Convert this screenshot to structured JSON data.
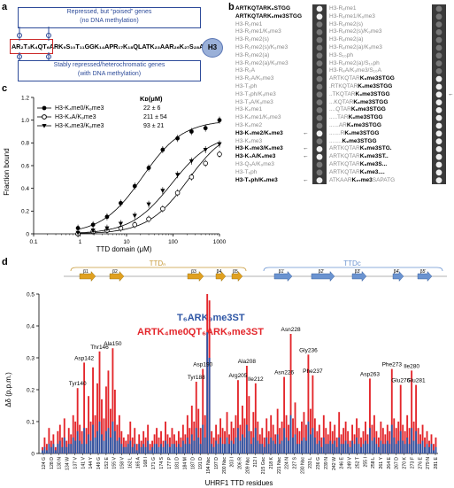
{
  "panels": {
    "a": "a",
    "b": "b",
    "c": "c",
    "d": "d"
  },
  "panel_a": {
    "top_note_1": "Repressed, but “poised” genes",
    "top_note_2": "(no DNA methylation)",
    "bottom_note_1": "Stably repressed/heterochromatic genes",
    "bottom_note_2": "(with DNA methylation)",
    "sequence": "AR₂T₃K₄QT₆ARK₉S₁₀T₁₁GGK₁₄APR₁₇K₁₈QLATK₂₃AAR₂₆K₂₇S₂₈AP",
    "histone": "H3",
    "colors": {
      "top_box": "#2e4c9a",
      "bottom_box": "#2e4c9a",
      "red_box": "#cc2a2a"
    }
  },
  "panel_b": {
    "left_col": [
      {
        "text": "ARTKQTARK₉STGG",
        "bold": true
      },
      {
        "text": "ARTKQTARK₉me3STGG",
        "bold": true
      },
      {
        "text": "H3-R₂me1",
        "bold": false
      },
      {
        "text": "H3-R₂me1/K₉me3",
        "bold": false
      },
      {
        "text": "H3-R₂me2(s)",
        "bold": false
      },
      {
        "text": "H3-R₂me2(s)/K₉me3",
        "bold": false
      },
      {
        "text": "H3-R₂me2(a)",
        "bold": false
      },
      {
        "text": "H3-R₂me2(a)/K₉me3",
        "bold": false
      },
      {
        "text": "H3-R₂A",
        "bold": false
      },
      {
        "text": "H3-R₂A/K₉me3",
        "bold": false
      },
      {
        "text": "H3-T₃ph",
        "bold": false
      },
      {
        "text": "H3-T₃ph/K₉me3",
        "bold": false
      },
      {
        "text": "H3-T₃A/K₉me3",
        "bold": false
      },
      {
        "text": "H3-K₄me1",
        "bold": false
      },
      {
        "text": "H3-K₄me1/K₉me3",
        "bold": false
      },
      {
        "text": "H3-K₄me2",
        "bold": false
      },
      {
        "text": "H3-K₄me2/K₉me3",
        "bold": true
      },
      {
        "text": "H3-K₄me3",
        "bold": false
      },
      {
        "text": "H3-K₄me3/K₉me3",
        "bold": true
      },
      {
        "text": "H3-K₄A/K₉me3",
        "bold": true
      },
      {
        "text": "H3-Q₅A/K₉me3",
        "bold": false
      },
      {
        "text": "H3-T₆ph",
        "bold": false
      },
      {
        "text": "H3-T₆ph/K₉me3",
        "bold": true
      }
    ],
    "left_arrows": [
      16,
      18,
      19,
      22
    ],
    "right_col": [
      {
        "a": "H3-R₈me1",
        "b": ""
      },
      {
        "a": "H3-R₈me1/K₉me3",
        "b": ""
      },
      {
        "a": "H3-R₈me2(s)",
        "b": ""
      },
      {
        "a": "H3-R₈me2(s)/K₉me3",
        "b": ""
      },
      {
        "a": "H3-R₈me2(a)",
        "b": ""
      },
      {
        "a": "H3-R₈me2(a)/K₉me3",
        "b": ""
      },
      {
        "a": "H3-S₁₀ph",
        "b": ""
      },
      {
        "a": "H3-R₈me2(a)/S₁₀ph",
        "b": ""
      },
      {
        "a": "H3-R₈A/K₉me3/S₁₀A",
        "b": ""
      },
      {
        "a": "ARTKQTAR",
        "b": "K₉me3STGG"
      },
      {
        "a": ".RTKQTAR",
        "b": "K₉me3STGG"
      },
      {
        "a": "..TKQTAR",
        "b": "K₉me3STGG"
      },
      {
        "a": "...KQTAR",
        "b": "K₉me3STGG"
      },
      {
        "a": "....QTAR",
        "b": "K₉me3STGG"
      },
      {
        "a": ".....TAR",
        "b": "K₉me3STGG"
      },
      {
        "a": "......AR",
        "b": "K₉me3STGG"
      },
      {
        "a": ".......R",
        "b": "K₉me3STGG"
      },
      {
        "a": "........",
        "b": "K₉me3STGG"
      },
      {
        "a": "ARTKQTAR",
        "b": "K₉me3STG."
      },
      {
        "a": "ARTKQTAR",
        "b": "K₉me3ST.."
      },
      {
        "a": "ARTKQTAR",
        "b": "K₉me3S..."
      },
      {
        "a": "ARTKQTAR",
        "b": "K₉me3...."
      },
      {
        "a": "ATKAAR",
        "b": "K₂₇me3",
        "c": "SAPATG"
      }
    ],
    "right_arrow": 11
  },
  "panel_c": {
    "ylabel": "Fraction bound",
    "xlabel": "TTD domain (μM)",
    "kd_header": "Kᴅ(μM)",
    "legend": [
      {
        "name": "H3-K₄me0/K₉me3",
        "kd": "22 ± 6"
      },
      {
        "name": "H3-K₄A/K₉me3",
        "kd": "211 ± 54"
      },
      {
        "name": "H3-K₄me3/K₉me3",
        "kd": "93 ± 21"
      }
    ],
    "x_ticks": [
      "0.1",
      "1",
      "10",
      "100",
      "1000"
    ],
    "y_ticks": [
      "0",
      "0.2",
      "0.4",
      "0.6",
      "0.8",
      "1.0",
      "1.2"
    ]
  },
  "chart_data": {
    "type": "scatter",
    "xlabel": "TTD domain (μM)",
    "ylabel": "Fraction bound",
    "xscale": "log",
    "xlim": [
      0.1,
      1000
    ],
    "ylim": [
      0,
      1.2
    ],
    "series": [
      {
        "name": "H3-K₄me0/K₉me3",
        "marker": "filled-circle",
        "kd": 22,
        "x": [
          0.9,
          1.9,
          3.8,
          7.5,
          15,
          30,
          60,
          125,
          250,
          500,
          1000
        ],
        "y": [
          0.05,
          0.08,
          0.15,
          0.27,
          0.42,
          0.58,
          0.74,
          0.84,
          0.9,
          0.93,
          1.0
        ]
      },
      {
        "name": "H3-K₄A/K₉me3",
        "marker": "open-circle",
        "kd": 211,
        "x": [
          0.9,
          1.9,
          3.8,
          7.5,
          15,
          30,
          60,
          125,
          250,
          500,
          1000
        ],
        "y": [
          0.0,
          0.02,
          0.03,
          0.05,
          0.08,
          0.13,
          0.22,
          0.36,
          0.5,
          0.62,
          0.7
        ]
      },
      {
        "name": "H3-K₄me3/K₉me3",
        "marker": "filled-triangle",
        "kd": 93,
        "x": [
          0.9,
          1.9,
          3.8,
          7.5,
          15,
          30,
          60,
          125,
          250,
          500,
          1000
        ],
        "y": [
          0.01,
          0.03,
          0.05,
          0.09,
          0.16,
          0.26,
          0.38,
          0.52,
          0.64,
          0.74,
          0.79
        ]
      }
    ]
  },
  "panel_d": {
    "ylabel": "Δδ (p.p.m.)",
    "xlabel": "UHRF1 TTD residues",
    "legend_blue": "T₆ARK₉me3ST",
    "legend_red": "ARTK₄me0QT₆ARK₉me3ST",
    "ttdn": "TTDₙ",
    "ttdc": "TTDᴄ",
    "beta_n": [
      "β1",
      "β2",
      "β3",
      "β4",
      "β5"
    ],
    "beta_c": [
      "β1'",
      "β2'",
      "β3'",
      "β4'",
      "β5'"
    ],
    "y_ticks": [
      "0",
      "0.1",
      "0.2",
      "0.3",
      "0.4",
      "0.5"
    ],
    "ylim": [
      0,
      0.5
    ],
    "colors": {
      "red": "#e3262b",
      "blue": "#2e56a5",
      "arrow_n": "#e0a020",
      "arrow_c": "#6a93d0"
    },
    "peak_labels": [
      {
        "t": "Tyr140",
        "i": 16,
        "v": 0.205
      },
      {
        "t": "Asp142",
        "i": 19,
        "v": 0.285
      },
      {
        "t": "Thr146",
        "i": 26,
        "v": 0.32
      },
      {
        "t": "Ala150",
        "i": 32,
        "v": 0.33
      },
      {
        "t": "Tyr188",
        "i": 70,
        "v": 0.225
      },
      {
        "t": "Asp190",
        "i": 73,
        "v": 0.265
      },
      {
        "t": "Arg205",
        "i": 89,
        "v": 0.23
      },
      {
        "t": "Ala208",
        "i": 93,
        "v": 0.275
      },
      {
        "t": "Ile212",
        "i": 97,
        "v": 0.22
      },
      {
        "t": "Asn226",
        "i": 110,
        "v": 0.24
      },
      {
        "t": "Asn228",
        "i": 113,
        "v": 0.375
      },
      {
        "t": "Gly236",
        "i": 121,
        "v": 0.31
      },
      {
        "t": "Phe237",
        "i": 123,
        "v": 0.245
      },
      {
        "t": "Asp263",
        "i": 149,
        "v": 0.235
      },
      {
        "t": "Phe273",
        "i": 159,
        "v": 0.265
      },
      {
        "t": "Glu276",
        "i": 163,
        "v": 0.215
      },
      {
        "t": "Ile280",
        "i": 168,
        "v": 0.26
      },
      {
        "t": "Glu281",
        "i": 170,
        "v": 0.215
      }
    ],
    "x_ticks": [
      "124 G",
      "128 D",
      "130 N",
      "134 W",
      "137 V",
      "141 V",
      "144 Y",
      "149 G",
      "152 E",
      "155 V",
      "158 V",
      "162 L",
      "165 A",
      "168 I",
      "171 G",
      "174 S",
      "177 P",
      "181 D",
      "184 M",
      "187 D",
      "191 D",
      "194 Nsc",
      "197 D",
      "200 Nsc",
      "203 I",
      "206 R",
      "209 Nsc",
      "212 I",
      "215 Gsc",
      "218 K",
      "221 Nsc",
      "224 N",
      "227 S",
      "230 Nsc",
      "233 L",
      "236 G",
      "239 N",
      "242 W",
      "246 E",
      "249 V",
      "252 T",
      "255 I",
      "258 L",
      "261 Y",
      "264 E",
      "267 D",
      "270 K",
      "273 F",
      "276 E",
      "279 N",
      "281 E"
    ],
    "residue_count": 180,
    "red_values": [
      0.02,
      0.05,
      0.03,
      0.08,
      0.04,
      0.06,
      0.02,
      0.07,
      0.09,
      0.05,
      0.11,
      0.04,
      0.08,
      0.06,
      0.12,
      0.1,
      0.205,
      0.09,
      0.07,
      0.285,
      0.08,
      0.18,
      0.1,
      0.27,
      0.12,
      0.22,
      0.32,
      0.17,
      0.11,
      0.21,
      0.26,
      0.14,
      0.33,
      0.2,
      0.09,
      0.12,
      0.07,
      0.05,
      0.04,
      0.06,
      0.1,
      0.05,
      0.08,
      0.03,
      0.06,
      0.04,
      0.07,
      0.05,
      0.09,
      0.03,
      0.04,
      0.06,
      0.08,
      0.05,
      0.07,
      0.04,
      0.1,
      0.06,
      0.05,
      0.08,
      0.06,
      0.04,
      0.07,
      0.05,
      0.09,
      0.06,
      0.12,
      0.08,
      0.15,
      0.1,
      0.225,
      0.14,
      0.08,
      0.265,
      0.12,
      0.5,
      0.48,
      0.07,
      0.05,
      0.09,
      0.06,
      0.11,
      0.08,
      0.07,
      0.13,
      0.06,
      0.1,
      0.08,
      0.12,
      0.23,
      0.09,
      0.15,
      0.11,
      0.275,
      0.18,
      0.07,
      0.13,
      0.22,
      0.1,
      0.06,
      0.08,
      0.05,
      0.11,
      0.07,
      0.12,
      0.09,
      0.06,
      0.14,
      0.08,
      0.1,
      0.24,
      0.12,
      0.09,
      0.375,
      0.11,
      0.16,
      0.08,
      0.07,
      0.1,
      0.13,
      0.09,
      0.31,
      0.14,
      0.245,
      0.11,
      0.07,
      0.09,
      0.05,
      0.12,
      0.08,
      0.06,
      0.1,
      0.07,
      0.09,
      0.05,
      0.13,
      0.06,
      0.08,
      0.1,
      0.07,
      0.04,
      0.09,
      0.06,
      0.11,
      0.08,
      0.05,
      0.07,
      0.1,
      0.06,
      0.235,
      0.09,
      0.12,
      0.07,
      0.05,
      0.1,
      0.08,
      0.06,
      0.09,
      0.07,
      0.265,
      0.11,
      0.08,
      0.1,
      0.215,
      0.09,
      0.07,
      0.12,
      0.08,
      0.26,
      0.1,
      0.215,
      0.08,
      0.06,
      0.09,
      0.05,
      0.07,
      0.04,
      0.06,
      0.03,
      0.05
    ],
    "blue_values": [
      0.01,
      0.02,
      0.01,
      0.03,
      0.02,
      0.03,
      0.01,
      0.03,
      0.04,
      0.02,
      0.05,
      0.02,
      0.03,
      0.03,
      0.05,
      0.04,
      0.07,
      0.04,
      0.03,
      0.08,
      0.03,
      0.06,
      0.04,
      0.09,
      0.05,
      0.07,
      0.1,
      0.06,
      0.04,
      0.07,
      0.08,
      0.05,
      0.1,
      0.07,
      0.04,
      0.05,
      0.03,
      0.02,
      0.02,
      0.03,
      0.04,
      0.02,
      0.03,
      0.01,
      0.03,
      0.02,
      0.03,
      0.02,
      0.04,
      0.01,
      0.02,
      0.03,
      0.03,
      0.02,
      0.03,
      0.02,
      0.04,
      0.03,
      0.02,
      0.03,
      0.03,
      0.02,
      0.03,
      0.02,
      0.04,
      0.03,
      0.05,
      0.03,
      0.06,
      0.04,
      0.08,
      0.05,
      0.03,
      0.09,
      0.05,
      0.38,
      0.3,
      0.03,
      0.02,
      0.04,
      0.03,
      0.05,
      0.03,
      0.03,
      0.05,
      0.03,
      0.04,
      0.03,
      0.05,
      0.08,
      0.04,
      0.06,
      0.05,
      0.09,
      0.07,
      0.03,
      0.05,
      0.08,
      0.04,
      0.03,
      0.03,
      0.02,
      0.05,
      0.03,
      0.05,
      0.04,
      0.03,
      0.06,
      0.03,
      0.04,
      0.08,
      0.05,
      0.04,
      0.12,
      0.05,
      0.06,
      0.03,
      0.03,
      0.04,
      0.05,
      0.04,
      0.1,
      0.06,
      0.08,
      0.05,
      0.03,
      0.04,
      0.02,
      0.05,
      0.03,
      0.03,
      0.04,
      0.03,
      0.04,
      0.02,
      0.05,
      0.03,
      0.03,
      0.04,
      0.03,
      0.02,
      0.04,
      0.03,
      0.05,
      0.03,
      0.02,
      0.03,
      0.04,
      0.03,
      0.08,
      0.04,
      0.05,
      0.03,
      0.02,
      0.04,
      0.03,
      0.03,
      0.04,
      0.03,
      0.09,
      0.05,
      0.03,
      0.04,
      0.07,
      0.04,
      0.03,
      0.05,
      0.03,
      0.08,
      0.04,
      0.07,
      0.03,
      0.03,
      0.04,
      0.02,
      0.03,
      0.02,
      0.03,
      0.01,
      0.02
    ]
  }
}
